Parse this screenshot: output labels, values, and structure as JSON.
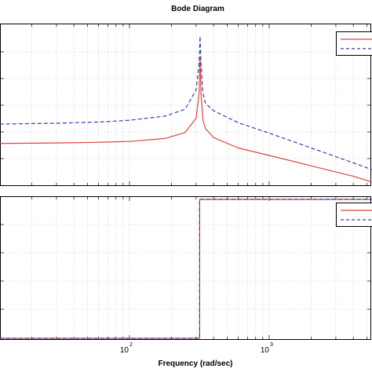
{
  "chart_data": [
    {
      "type": "line",
      "panel": "magnitude",
      "title": "Bode Diagram",
      "x_scale": "log",
      "xlim": [
        2.5,
        6000
      ],
      "x_ticks": [
        100,
        1000
      ],
      "grid": true,
      "legend_placement": "top-right",
      "series": [
        {
          "style": "solid",
          "color": "#e0433f",
          "x": [
            2.5,
            10,
            30,
            60,
            100,
            180,
            250,
            300,
            315,
            320,
            325,
            335,
            350,
            400,
            600,
            1000,
            2000,
            4000,
            6000
          ],
          "y": [
            -10,
            -10,
            -9.8,
            -9.6,
            -9.3,
            -8.3,
            -6.3,
            -1.5,
            7,
            19,
            7,
            -2,
            -5,
            -8,
            -11.5,
            -14,
            -17.5,
            -21,
            -23.5
          ]
        },
        {
          "style": "dashed",
          "color": "#3a3fb0",
          "x": [
            2.5,
            10,
            30,
            60,
            100,
            180,
            250,
            300,
            315,
            320,
            325,
            335,
            350,
            400,
            600,
            1000,
            2000,
            4000,
            6000
          ],
          "y": [
            -3.5,
            -3.5,
            -3.2,
            -2.8,
            -2.2,
            -0.8,
            1.5,
            8,
            17,
            26,
            17,
            7,
            3.5,
            1,
            -3,
            -6.5,
            -11.5,
            -16.5,
            -19.5
          ]
        }
      ]
    },
    {
      "type": "line",
      "panel": "phase",
      "xlabel": "Frequency  (rad/sec)",
      "x_scale": "log",
      "xlim": [
        2.5,
        6000
      ],
      "x_ticks": [
        100,
        1000
      ],
      "tick_labels": [
        "10",
        "2",
        "10",
        "3"
      ],
      "grid": true,
      "legend_placement": "top-right",
      "series": [
        {
          "style": "solid",
          "color": "#e0433f",
          "x": [
            2.5,
            318,
            318,
            6000
          ],
          "y": [
            0,
            0,
            1,
            1
          ]
        },
        {
          "style": "dashed",
          "color": "#3a3fb0",
          "x": [
            2.5,
            318,
            318,
            6000
          ],
          "y": [
            0,
            0,
            1,
            1
          ]
        }
      ]
    }
  ]
}
